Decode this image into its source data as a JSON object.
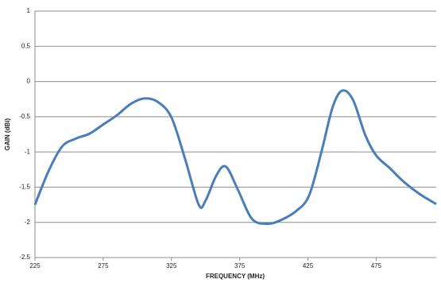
{
  "chart_data": {
    "type": "line",
    "xlabel": "FREQUENCY (MHz)",
    "ylabel": "GAIN (dBi)",
    "x": [
      225,
      235,
      245,
      255,
      265,
      275,
      285,
      295,
      305,
      315,
      325,
      335,
      345,
      350,
      358,
      365,
      374,
      384,
      395,
      405,
      417,
      426,
      435,
      443,
      450,
      458,
      467,
      475,
      485,
      495,
      507,
      519
    ],
    "series": [
      {
        "color": "#4a7ebb",
        "values": [
          -1.75,
          -1.27,
          -0.92,
          -0.81,
          -0.74,
          -0.61,
          -0.48,
          -0.32,
          -0.24,
          -0.29,
          -0.51,
          -1.1,
          -1.75,
          -1.69,
          -1.33,
          -1.21,
          -1.55,
          -1.95,
          -2.02,
          -1.97,
          -1.83,
          -1.61,
          -0.99,
          -0.37,
          -0.13,
          -0.26,
          -0.76,
          -1.05,
          -1.23,
          -1.42,
          -1.6,
          -1.74
        ]
      }
    ],
    "xlim": [
      225,
      519
    ],
    "xticks": [
      225,
      275,
      325,
      375,
      425,
      475
    ],
    "ylim": [
      -2.5,
      1
    ],
    "yticks": [
      -2.5,
      -2,
      -1.5,
      -1,
      -0.5,
      0,
      0.5,
      1
    ],
    "grid": true
  }
}
